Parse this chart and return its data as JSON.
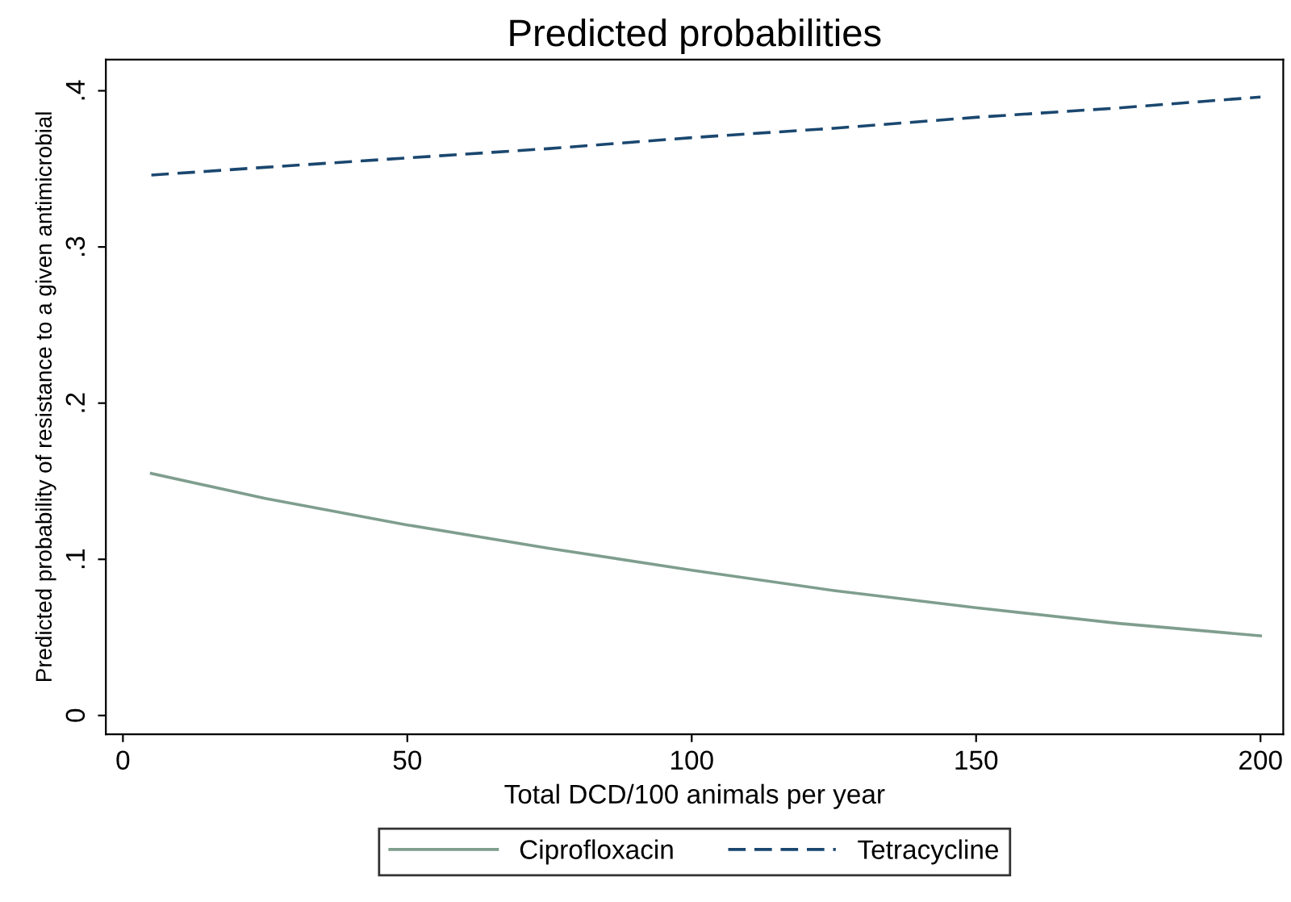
{
  "chart_data": {
    "type": "line",
    "title": "Predicted probabilities",
    "xlabel": "Total DCD/100 animals per year",
    "ylabel": "Predicted probability of resistance to a given antimicrobial",
    "x": [
      5,
      25,
      50,
      75,
      100,
      125,
      150,
      175,
      200
    ],
    "series": [
      {
        "name": "Ciprofloxacin",
        "color": "#7f9e8e",
        "line_style": "solid",
        "values": [
          0.155,
          0.139,
          0.122,
          0.107,
          0.093,
          0.08,
          0.069,
          0.059,
          0.051
        ]
      },
      {
        "name": "Tetracycline",
        "color": "#1a476f",
        "line_style": "dashed",
        "values": [
          0.346,
          0.351,
          0.357,
          0.363,
          0.37,
          0.376,
          0.383,
          0.389,
          0.396
        ]
      }
    ],
    "xlim": [
      -3,
      204
    ],
    "ylim": [
      -0.012,
      0.42
    ],
    "xticks": [
      0,
      50,
      100,
      150,
      200
    ],
    "yticks": [
      0,
      {
        "value": 0.1,
        "label": ".1"
      },
      {
        "value": 0.2,
        "label": ".2"
      },
      {
        "value": 0.3,
        "label": ".3"
      },
      {
        "value": 0.4,
        "label": ".4"
      }
    ],
    "grid": false,
    "legend": "bottom",
    "marker": "none"
  }
}
